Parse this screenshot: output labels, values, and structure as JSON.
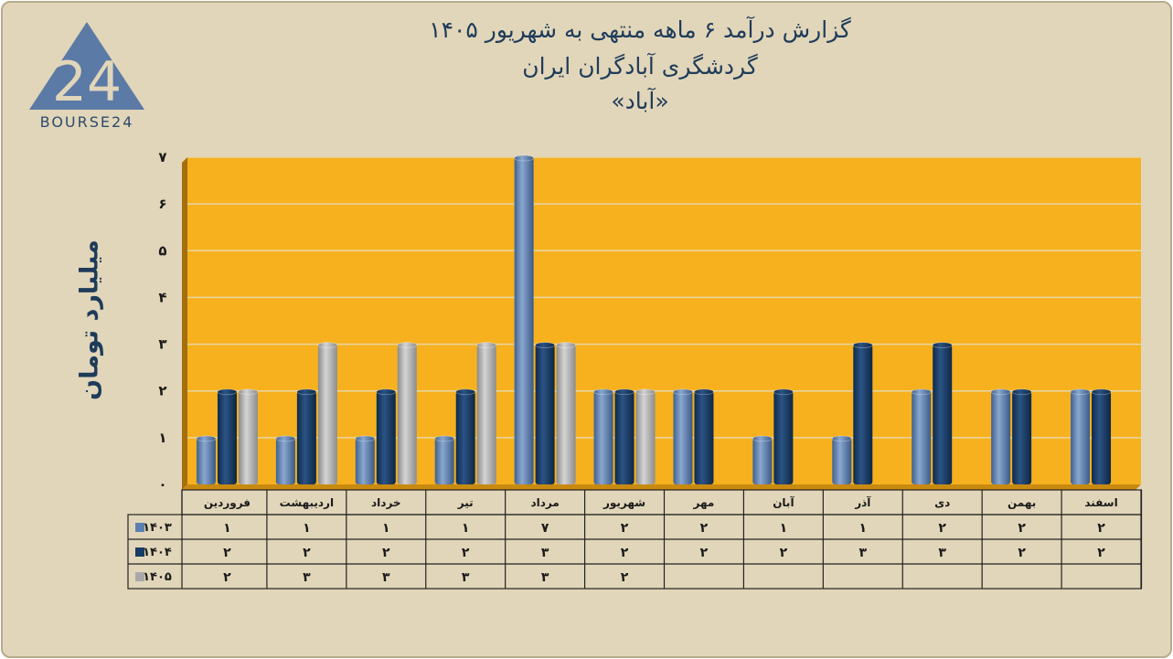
{
  "header": {
    "title_line1": "گزارش  درآمد ۶ ماهه منتهی به شهریور ۱۴۰۵",
    "title_line2": "گردشگری آبادگران ایران",
    "title_line3": "«آباد»"
  },
  "logo": {
    "text": "BOURSE24",
    "mark": "24"
  },
  "colors": {
    "background": "#e1d6b9",
    "plot": "#f7b11e",
    "s1403": "#5b7fb0",
    "s1404": "#173c66",
    "s1405": "#a8a8a8"
  },
  "chart_data": {
    "type": "bar",
    "ylabel": "میلیارد تومان",
    "ylim": [
      0,
      7
    ],
    "yticks": [
      "۰",
      "۱",
      "۲",
      "۳",
      "۴",
      "۵",
      "۶",
      "۷"
    ],
    "categories": [
      "فروردین",
      "اردیبهشت",
      "خرداد",
      "تیر",
      "مرداد",
      "شهریور",
      "مهر",
      "آبان",
      "آذر",
      "دی",
      "بهمن",
      "اسفند"
    ],
    "series": [
      {
        "name": "۱۴۰۳",
        "values": [
          1,
          1,
          1,
          1,
          7,
          2,
          2,
          1,
          1,
          2,
          2,
          2
        ],
        "labels": [
          "۱",
          "۱",
          "۱",
          "۱",
          "۷",
          "۲",
          "۲",
          "۱",
          "۱",
          "۲",
          "۲",
          "۲"
        ]
      },
      {
        "name": "۱۴۰۴",
        "values": [
          2,
          2,
          2,
          2,
          3,
          2,
          2,
          2,
          3,
          3,
          2,
          2
        ],
        "labels": [
          "۲",
          "۲",
          "۲",
          "۲",
          "۳",
          "۲",
          "۲",
          "۲",
          "۳",
          "۳",
          "۲",
          "۲"
        ]
      },
      {
        "name": "۱۴۰۵",
        "values": [
          2,
          3,
          3,
          3,
          3,
          2,
          null,
          null,
          null,
          null,
          null,
          null
        ],
        "labels": [
          "۲",
          "۳",
          "۳",
          "۳",
          "۳",
          "۲",
          "",
          "",
          "",
          "",
          "",
          ""
        ]
      }
    ],
    "grid": true,
    "legend": "data-table"
  }
}
